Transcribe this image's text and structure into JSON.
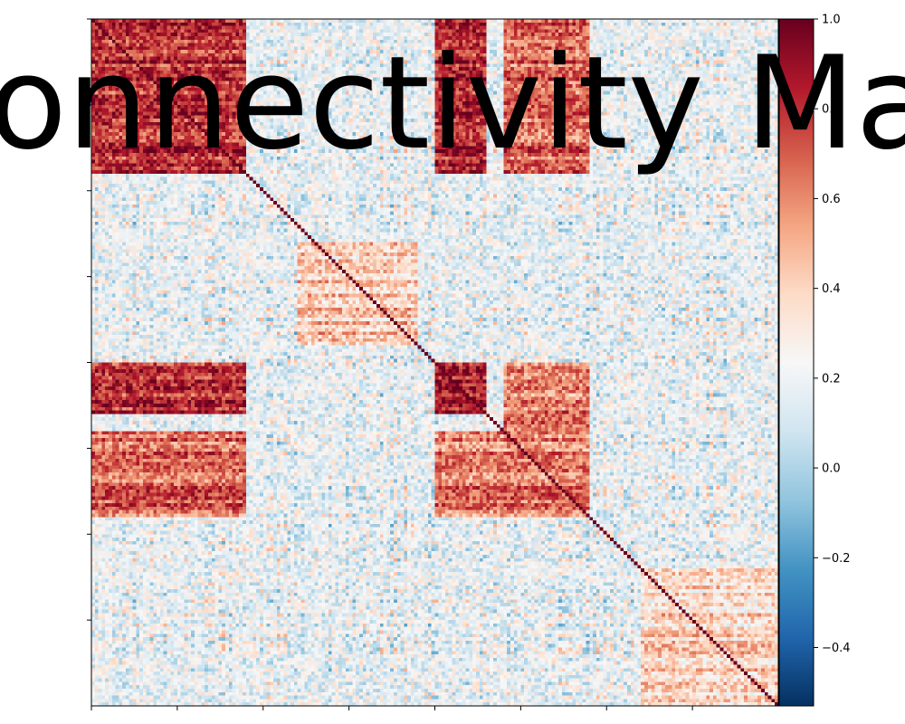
{
  "chart_data": {
    "type": "heatmap",
    "title": "Connectivity Matrix",
    "xlabel": "",
    "ylabel": "",
    "colormap": "RdBu_r",
    "colorbar": {
      "vmin": -0.53,
      "vmax": 1.0,
      "ticks": [
        1.0,
        0.8,
        0.6,
        0.4,
        0.2,
        0.0,
        -0.2,
        -0.4
      ],
      "tick_labels": [
        "1.0",
        "0.8",
        "0.6",
        "0.4",
        "0.2",
        "0.0",
        "−0.2",
        "−0.4"
      ]
    },
    "matrix_size": 200,
    "diagonal_value": 1.0,
    "blocks": [
      {
        "rows": [
          0,
          45
        ],
        "cols": [
          0,
          45
        ],
        "level": 0.82
      },
      {
        "rows": [
          0,
          45
        ],
        "cols": [
          100,
          115
        ],
        "level": 0.85
      },
      {
        "rows": [
          100,
          115
        ],
        "cols": [
          0,
          45
        ],
        "level": 0.85
      },
      {
        "rows": [
          100,
          115
        ],
        "cols": [
          100,
          115
        ],
        "level": 0.9
      },
      {
        "rows": [
          120,
          145
        ],
        "cols": [
          0,
          45
        ],
        "level": 0.7
      },
      {
        "rows": [
          0,
          45
        ],
        "cols": [
          120,
          145
        ],
        "level": 0.7
      },
      {
        "rows": [
          120,
          145
        ],
        "cols": [
          100,
          145
        ],
        "level": 0.65
      },
      {
        "rows": [
          100,
          145
        ],
        "cols": [
          120,
          145
        ],
        "level": 0.65
      },
      {
        "rows": [
          65,
          95
        ],
        "cols": [
          60,
          95
        ],
        "level": 0.45
      },
      {
        "rows": [
          160,
          200
        ],
        "cols": [
          160,
          200
        ],
        "level": 0.4
      }
    ],
    "x_tick_count": 8,
    "y_tick_count": 8,
    "grid": false,
    "legend": "none"
  },
  "colors": {
    "low": "#053061",
    "mid": "#f7f7f7",
    "high": "#67001f"
  }
}
